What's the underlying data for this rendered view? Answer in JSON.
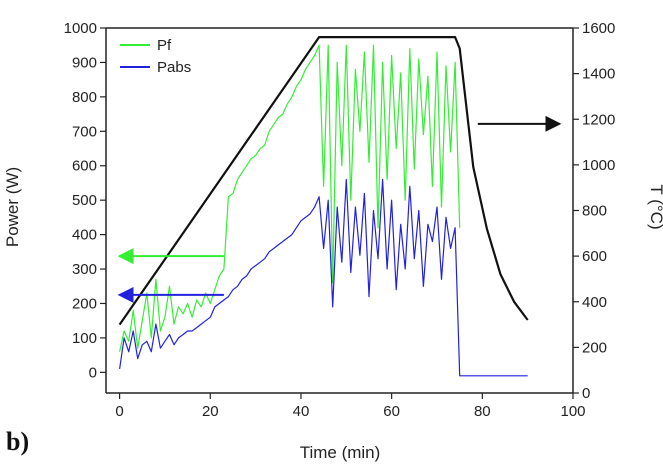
{
  "chart_data": {
    "type": "line",
    "panel_label": "b)",
    "xlabel": "Time (min)",
    "ylabel_left": "Power (W)",
    "ylabel_right": "T (°C)",
    "xlim": [
      -3,
      100
    ],
    "ylim_left": [
      -60,
      1000
    ],
    "ylim_right": [
      0,
      1600
    ],
    "x_ticks": [
      0,
      20,
      40,
      60,
      80,
      100
    ],
    "y_left_ticks": [
      0,
      100,
      200,
      300,
      400,
      500,
      600,
      700,
      800,
      900,
      1000
    ],
    "y_right_ticks": [
      0,
      200,
      400,
      600,
      800,
      1000,
      1200,
      1400,
      1600
    ],
    "grid": false,
    "legend_position": "top-left",
    "legend": [
      "Pf",
      "Pabs"
    ],
    "series": [
      {
        "name": "Pf",
        "axis": "left",
        "color": "#33ee33",
        "x": [
          0,
          1,
          2,
          3,
          4,
          5,
          6,
          7,
          8,
          9,
          10,
          11,
          12,
          13,
          14,
          15,
          16,
          17,
          18,
          19,
          20,
          21,
          22,
          23,
          24,
          25,
          26,
          27,
          28,
          29,
          30,
          31,
          32,
          33,
          34,
          35,
          36,
          37,
          38,
          39,
          40,
          41,
          42,
          43,
          44,
          45,
          46,
          47,
          48,
          49,
          50,
          51,
          52,
          53,
          54,
          55,
          56,
          57,
          58,
          59,
          60,
          61,
          62,
          63,
          64,
          65,
          66,
          67,
          68,
          69,
          70,
          71,
          72,
          73,
          74,
          75
        ],
        "y": [
          60,
          120,
          90,
          180,
          70,
          150,
          230,
          100,
          270,
          120,
          160,
          250,
          140,
          190,
          170,
          200,
          160,
          210,
          190,
          230,
          200,
          240,
          280,
          300,
          510,
          520,
          560,
          580,
          600,
          620,
          630,
          650,
          660,
          700,
          720,
          740,
          750,
          780,
          800,
          830,
          850,
          880,
          900,
          920,
          950,
          540,
          950,
          260,
          900,
          600,
          950,
          500,
          880,
          700,
          930,
          610,
          950,
          420,
          900,
          560,
          920,
          650,
          870,
          500,
          940,
          590,
          910,
          690,
          860,
          540,
          930,
          480,
          890,
          640,
          900,
          420
        ]
      },
      {
        "name": "Pabs",
        "axis": "left",
        "color": "#2222dd",
        "x": [
          0,
          1,
          2,
          3,
          4,
          5,
          6,
          7,
          8,
          9,
          10,
          11,
          12,
          13,
          14,
          15,
          16,
          17,
          18,
          19,
          20,
          21,
          22,
          23,
          24,
          25,
          26,
          27,
          28,
          29,
          30,
          31,
          32,
          33,
          34,
          35,
          36,
          37,
          38,
          39,
          40,
          41,
          42,
          43,
          44,
          45,
          46,
          47,
          48,
          49,
          50,
          51,
          52,
          53,
          54,
          55,
          56,
          57,
          58,
          59,
          60,
          61,
          62,
          63,
          64,
          65,
          66,
          67,
          68,
          69,
          70,
          71,
          72,
          73,
          74,
          75,
          76,
          80,
          85,
          90
        ],
        "y": [
          10,
          100,
          60,
          120,
          40,
          80,
          90,
          60,
          140,
          70,
          90,
          110,
          80,
          100,
          110,
          120,
          120,
          130,
          140,
          150,
          160,
          190,
          200,
          210,
          220,
          240,
          250,
          270,
          280,
          300,
          310,
          320,
          330,
          350,
          360,
          370,
          380,
          390,
          400,
          420,
          440,
          450,
          460,
          480,
          510,
          360,
          500,
          190,
          480,
          320,
          560,
          290,
          480,
          340,
          520,
          220,
          470,
          330,
          560,
          300,
          500,
          240,
          430,
          300,
          540,
          330,
          470,
          250,
          430,
          380,
          480,
          270,
          450,
          360,
          420,
          -10,
          -10,
          -10,
          -10,
          -10
        ]
      },
      {
        "name": "T",
        "axis": "right",
        "color": "#111111",
        "x": [
          0,
          44,
          45,
          74,
          75,
          78,
          81,
          84,
          87,
          90
        ],
        "y": [
          300,
          1560,
          1560,
          1560,
          1510,
          990,
          720,
          520,
          400,
          320
        ]
      }
    ],
    "annotations": [
      {
        "type": "arrow",
        "from_x": 23,
        "to_x": 0,
        "y": 600,
        "axis": "right",
        "color": "#33ee33"
      },
      {
        "type": "arrow",
        "from_x": 23,
        "to_x": 0,
        "y": 430,
        "axis": "right",
        "color": "#2222dd"
      },
      {
        "type": "arrow",
        "from_x": 79,
        "to_x": 97,
        "y": 1180,
        "axis": "right",
        "color": "#111111"
      }
    ]
  }
}
